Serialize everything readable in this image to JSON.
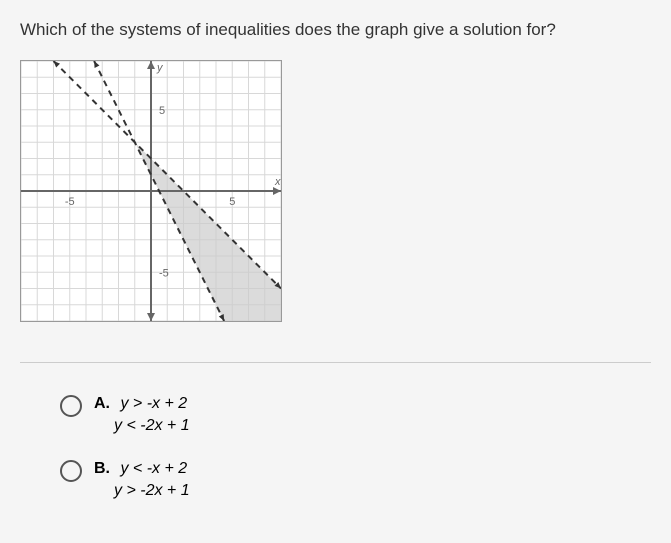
{
  "question": "Which of the systems of inequalities does the graph give a solution for?",
  "graph": {
    "xlim": [
      -8,
      8
    ],
    "ylim": [
      -8,
      8
    ],
    "tick_step": 1,
    "major_ticks": [
      -5,
      5
    ],
    "axis_label_x": "x",
    "axis_label_y": "y",
    "grid_color": "#d8d8d8",
    "axis_color": "#666666",
    "shade_color": "#cccccc",
    "line_color": "#333333",
    "lines": [
      {
        "slope": -1,
        "intercept": 2,
        "style": "dashed"
      },
      {
        "slope": -2,
        "intercept": 1,
        "style": "dashed"
      }
    ],
    "shaded_region": "between lines, triangular wedge from (-1,3) downward to right"
  },
  "options": [
    {
      "letter": "A.",
      "line1_var1": "y",
      "line1_op": ">",
      "line1_rhs": "-x + 2",
      "line2_var1": "y",
      "line2_op": "<",
      "line2_rhs": "-2x + 1"
    },
    {
      "letter": "B.",
      "line1_var1": "y",
      "line1_op": "<",
      "line1_rhs": "-x + 2",
      "line2_var1": "y",
      "line2_op": ">",
      "line2_rhs": "-2x + 1"
    }
  ]
}
